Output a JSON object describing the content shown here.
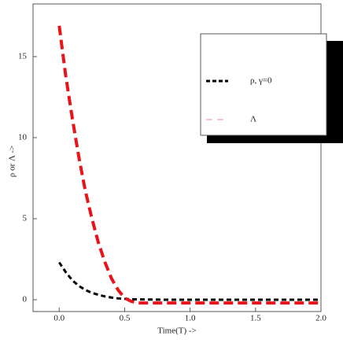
{
  "chart_data": {
    "type": "line",
    "x_label": "Time(T) ->",
    "y_label": "ρ or Λ ->",
    "x": [
      0,
      0.05,
      0.1,
      0.15,
      0.2,
      0.25,
      0.3,
      0.35,
      0.4,
      0.45,
      0.5,
      0.55,
      0.6,
      0.8,
      1.0,
      1.2,
      1.4,
      1.6,
      1.8,
      2.0
    ],
    "series": [
      {
        "name": "ρ, γ=0",
        "color": "#000000",
        "values": [
          2.3,
          1.7,
          1.2,
          0.85,
          0.6,
          0.42,
          0.3,
          0.2,
          0.13,
          0.08,
          0.05,
          0.03,
          0.02,
          0,
          0,
          0,
          0,
          0,
          0,
          0
        ]
      },
      {
        "name": "Λ",
        "color": "#e8141b",
        "values": [
          16.9,
          13.8,
          11.2,
          8.8,
          6.7,
          5.0,
          3.5,
          2.3,
          1.3,
          0.6,
          0.1,
          -0.1,
          -0.2,
          -0.2,
          -0.2,
          -0.2,
          -0.2,
          -0.2,
          -0.2,
          -0.2
        ]
      }
    ],
    "xlim": [
      -0.2,
      2.0
    ],
    "ylim": [
      -0.73,
      18.25
    ],
    "xticks": [
      {
        "value": 0,
        "label": "0.0"
      },
      {
        "value": 0.5,
        "label": "0.5"
      },
      {
        "value": 1,
        "label": "1.0"
      },
      {
        "value": 1.5,
        "label": "1.5"
      },
      {
        "value": 2,
        "label": "2.0"
      }
    ],
    "yticks": [
      0,
      5,
      10,
      15
    ],
    "legend": "upper right"
  }
}
